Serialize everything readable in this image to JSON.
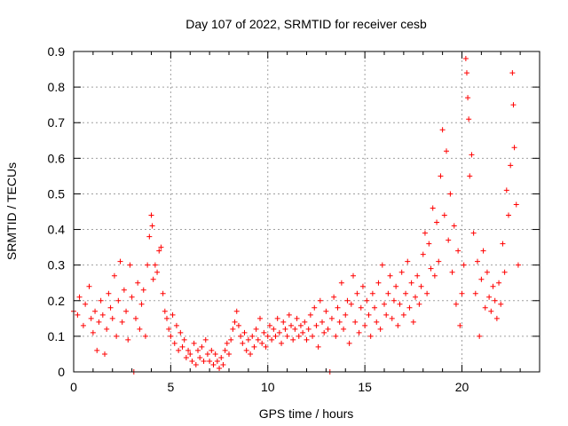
{
  "chart_data": {
    "type": "scatter",
    "title": "Day 107 of 2022, SRMTID for receiver cesb",
    "xlabel": "GPS time / hours",
    "ylabel": "SRMTID / TECUs",
    "xlim": [
      0,
      24
    ],
    "ylim": [
      0,
      0.9
    ],
    "xticks": [
      0,
      5,
      10,
      15,
      20
    ],
    "yticks": [
      0,
      0.1,
      0.2,
      0.3,
      0.4,
      0.5,
      0.6,
      0.7,
      0.8,
      0.9
    ],
    "grid": true,
    "marker": "+",
    "color": "#ff0000",
    "series": [
      {
        "name": "SRMTID",
        "points": [
          [
            0.0,
            0.17
          ],
          [
            0.2,
            0.16
          ],
          [
            0.3,
            0.21
          ],
          [
            0.5,
            0.13
          ],
          [
            0.6,
            0.19
          ],
          [
            0.8,
            0.24
          ],
          [
            0.9,
            0.15
          ],
          [
            1.0,
            0.11
          ],
          [
            1.1,
            0.17
          ],
          [
            1.2,
            0.06
          ],
          [
            1.3,
            0.14
          ],
          [
            1.4,
            0.2
          ],
          [
            1.5,
            0.16
          ],
          [
            1.6,
            0.05
          ],
          [
            1.7,
            0.12
          ],
          [
            1.8,
            0.22
          ],
          [
            1.9,
            0.18
          ],
          [
            2.0,
            0.15
          ],
          [
            2.1,
            0.27
          ],
          [
            2.2,
            0.1
          ],
          [
            2.3,
            0.2
          ],
          [
            2.4,
            0.31
          ],
          [
            2.5,
            0.14
          ],
          [
            2.6,
            0.23
          ],
          [
            2.7,
            0.17
          ],
          [
            2.8,
            0.09
          ],
          [
            2.9,
            0.3
          ],
          [
            3.0,
            0.21
          ],
          [
            3.1,
            0.0
          ],
          [
            3.2,
            0.15
          ],
          [
            3.3,
            0.25
          ],
          [
            3.4,
            0.12
          ],
          [
            3.5,
            0.19
          ],
          [
            3.6,
            0.23
          ],
          [
            3.7,
            0.1
          ],
          [
            3.8,
            0.3
          ],
          [
            3.9,
            0.38
          ],
          [
            4.0,
            0.44
          ],
          [
            4.05,
            0.41
          ],
          [
            4.1,
            0.26
          ],
          [
            4.2,
            0.3
          ],
          [
            4.3,
            0.28
          ],
          [
            4.4,
            0.34
          ],
          [
            4.5,
            0.35
          ],
          [
            4.6,
            0.22
          ],
          [
            4.7,
            0.17
          ],
          [
            4.8,
            0.15
          ],
          [
            4.9,
            0.12
          ],
          [
            5.0,
            0.1
          ],
          [
            5.1,
            0.16
          ],
          [
            5.2,
            0.08
          ],
          [
            5.3,
            0.13
          ],
          [
            5.4,
            0.06
          ],
          [
            5.5,
            0.11
          ],
          [
            5.6,
            0.07
          ],
          [
            5.7,
            0.09
          ],
          [
            5.8,
            0.04
          ],
          [
            5.9,
            0.06
          ],
          [
            6.0,
            0.05
          ],
          [
            6.1,
            0.03
          ],
          [
            6.2,
            0.08
          ],
          [
            6.3,
            0.02
          ],
          [
            6.4,
            0.06
          ],
          [
            6.5,
            0.04
          ],
          [
            6.6,
            0.07
          ],
          [
            6.7,
            0.03
          ],
          [
            6.8,
            0.09
          ],
          [
            6.9,
            0.05
          ],
          [
            7.0,
            0.03
          ],
          [
            7.1,
            0.06
          ],
          [
            7.2,
            0.02
          ],
          [
            7.3,
            0.05
          ],
          [
            7.4,
            0.03
          ],
          [
            7.5,
            0.01
          ],
          [
            7.6,
            0.04
          ],
          [
            7.7,
            0.02
          ],
          [
            7.8,
            0.06
          ],
          [
            7.9,
            0.08
          ],
          [
            8.0,
            0.05
          ],
          [
            8.1,
            0.09
          ],
          [
            8.2,
            0.12
          ],
          [
            8.3,
            0.14
          ],
          [
            8.4,
            0.17
          ],
          [
            8.5,
            0.13
          ],
          [
            8.6,
            0.1
          ],
          [
            8.7,
            0.08
          ],
          [
            8.8,
            0.11
          ],
          [
            8.9,
            0.06
          ],
          [
            9.0,
            0.09
          ],
          [
            9.1,
            0.05
          ],
          [
            9.2,
            0.1
          ],
          [
            9.3,
            0.07
          ],
          [
            9.4,
            0.12
          ],
          [
            9.5,
            0.09
          ],
          [
            9.6,
            0.15
          ],
          [
            9.7,
            0.08
          ],
          [
            9.8,
            0.11
          ],
          [
            9.9,
            0.07
          ],
          [
            10.0,
            0.1
          ],
          [
            10.1,
            0.13
          ],
          [
            10.2,
            0.09
          ],
          [
            10.3,
            0.12
          ],
          [
            10.4,
            0.1
          ],
          [
            10.5,
            0.15
          ],
          [
            10.6,
            0.11
          ],
          [
            10.7,
            0.08
          ],
          [
            10.8,
            0.14
          ],
          [
            10.9,
            0.12
          ],
          [
            11.0,
            0.1
          ],
          [
            11.1,
            0.16
          ],
          [
            11.2,
            0.13
          ],
          [
            11.3,
            0.09
          ],
          [
            11.4,
            0.12
          ],
          [
            11.5,
            0.15
          ],
          [
            11.6,
            0.1
          ],
          [
            11.7,
            0.13
          ],
          [
            11.8,
            0.11
          ],
          [
            11.9,
            0.14
          ],
          [
            12.0,
            0.09
          ],
          [
            12.1,
            0.12
          ],
          [
            12.2,
            0.16
          ],
          [
            12.3,
            0.1
          ],
          [
            12.4,
            0.18
          ],
          [
            12.5,
            0.13
          ],
          [
            12.6,
            0.07
          ],
          [
            12.7,
            0.2
          ],
          [
            12.8,
            0.14
          ],
          [
            12.9,
            0.11
          ],
          [
            13.0,
            0.17
          ],
          [
            13.1,
            0.12
          ],
          [
            13.2,
            0.0
          ],
          [
            13.3,
            0.15
          ],
          [
            13.4,
            0.21
          ],
          [
            13.5,
            0.1
          ],
          [
            13.6,
            0.18
          ],
          [
            13.7,
            0.14
          ],
          [
            13.8,
            0.25
          ],
          [
            13.9,
            0.12
          ],
          [
            14.0,
            0.16
          ],
          [
            14.1,
            0.2
          ],
          [
            14.2,
            0.08
          ],
          [
            14.3,
            0.19
          ],
          [
            14.4,
            0.27
          ],
          [
            14.5,
            0.14
          ],
          [
            14.6,
            0.22
          ],
          [
            14.7,
            0.11
          ],
          [
            14.8,
            0.18
          ],
          [
            14.9,
            0.24
          ],
          [
            15.0,
            0.13
          ],
          [
            15.1,
            0.2
          ],
          [
            15.2,
            0.16
          ],
          [
            15.3,
            0.1
          ],
          [
            15.4,
            0.22
          ],
          [
            15.5,
            0.18
          ],
          [
            15.6,
            0.14
          ],
          [
            15.7,
            0.25
          ],
          [
            15.8,
            0.12
          ],
          [
            15.9,
            0.3
          ],
          [
            16.0,
            0.19
          ],
          [
            16.1,
            0.16
          ],
          [
            16.2,
            0.22
          ],
          [
            16.3,
            0.27
          ],
          [
            16.4,
            0.15
          ],
          [
            16.5,
            0.2
          ],
          [
            16.6,
            0.24
          ],
          [
            16.7,
            0.13
          ],
          [
            16.8,
            0.19
          ],
          [
            16.9,
            0.28
          ],
          [
            17.0,
            0.16
          ],
          [
            17.1,
            0.22
          ],
          [
            17.2,
            0.31
          ],
          [
            17.3,
            0.18
          ],
          [
            17.4,
            0.25
          ],
          [
            17.5,
            0.14
          ],
          [
            17.6,
            0.21
          ],
          [
            17.7,
            0.27
          ],
          [
            17.8,
            0.19
          ],
          [
            17.9,
            0.24
          ],
          [
            18.0,
            0.33
          ],
          [
            18.1,
            0.39
          ],
          [
            18.2,
            0.22
          ],
          [
            18.3,
            0.36
          ],
          [
            18.4,
            0.29
          ],
          [
            18.5,
            0.46
          ],
          [
            18.6,
            0.27
          ],
          [
            18.7,
            0.42
          ],
          [
            18.8,
            0.31
          ],
          [
            18.9,
            0.55
          ],
          [
            19.0,
            0.68
          ],
          [
            19.1,
            0.44
          ],
          [
            19.2,
            0.62
          ],
          [
            19.3,
            0.37
          ],
          [
            19.4,
            0.5
          ],
          [
            19.5,
            0.28
          ],
          [
            19.6,
            0.41
          ],
          [
            19.7,
            0.19
          ],
          [
            19.8,
            0.34
          ],
          [
            19.9,
            0.13
          ],
          [
            20.0,
            0.22
          ],
          [
            20.1,
            0.3
          ],
          [
            20.2,
            0.88
          ],
          [
            20.25,
            0.84
          ],
          [
            20.3,
            0.77
          ],
          [
            20.35,
            0.71
          ],
          [
            20.4,
            0.55
          ],
          [
            20.5,
            0.61
          ],
          [
            20.6,
            0.39
          ],
          [
            20.7,
            0.22
          ],
          [
            20.8,
            0.31
          ],
          [
            20.9,
            0.1
          ],
          [
            21.0,
            0.26
          ],
          [
            21.1,
            0.34
          ],
          [
            21.2,
            0.18
          ],
          [
            21.3,
            0.28
          ],
          [
            21.4,
            0.21
          ],
          [
            21.5,
            0.17
          ],
          [
            21.6,
            0.24
          ],
          [
            21.7,
            0.2
          ],
          [
            21.8,
            0.15
          ],
          [
            21.9,
            0.25
          ],
          [
            22.0,
            0.19
          ],
          [
            22.1,
            0.36
          ],
          [
            22.2,
            0.28
          ],
          [
            22.3,
            0.51
          ],
          [
            22.4,
            0.44
          ],
          [
            22.5,
            0.58
          ],
          [
            22.6,
            0.84
          ],
          [
            22.65,
            0.75
          ],
          [
            22.7,
            0.63
          ],
          [
            22.8,
            0.47
          ],
          [
            22.9,
            0.3
          ]
        ]
      }
    ]
  }
}
